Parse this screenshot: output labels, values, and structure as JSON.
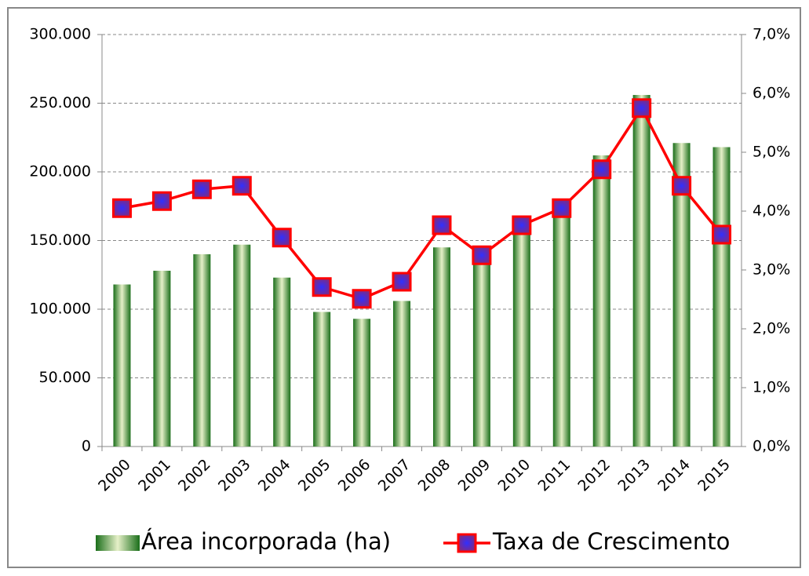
{
  "chart_data": {
    "type": "bar_line",
    "categories": [
      "2000",
      "2001",
      "2002",
      "2003",
      "2004",
      "2005",
      "2006",
      "2007",
      "2008",
      "2009",
      "2010",
      "2011",
      "2012",
      "2013",
      "2014",
      "2015"
    ],
    "series": [
      {
        "name": "Área incorporada (ha)",
        "type": "bar",
        "color": "#1e7a1e",
        "values": [
          118000,
          128000,
          140000,
          147000,
          123000,
          98000,
          93000,
          106000,
          145000,
          135000,
          158000,
          172000,
          212000,
          256000,
          221000,
          218000
        ]
      },
      {
        "name": "Taxa de Crescimento",
        "type": "line",
        "axis": "y2",
        "color": "#ff0000",
        "values": [
          4.05,
          4.17,
          4.37,
          4.43,
          3.55,
          2.71,
          2.51,
          2.8,
          3.76,
          3.25,
          3.76,
          4.05,
          4.71,
          5.75,
          4.43,
          3.6
        ]
      }
    ],
    "ylim": [
      0,
      300000
    ],
    "yticks": [
      0,
      {
        "value": 50000,
        "label": "50.000"
      },
      {
        "value": 100000,
        "label": "100.000"
      },
      {
        "value": 150000,
        "label": "150.000"
      },
      {
        "value": 200000,
        "label": "200.000"
      },
      {
        "value": 250000,
        "label": "250.000"
      },
      {
        "value": 300000,
        "label": "300.000"
      }
    ],
    "y2lim": [
      0,
      7
    ],
    "y2ticks": [
      {
        "value": 0,
        "label": "0,0%"
      },
      {
        "value": 1,
        "label": "1,0%"
      },
      {
        "value": 2,
        "label": "2,0%"
      },
      {
        "value": 3,
        "label": "3,0%"
      },
      {
        "value": 4,
        "label": "4,0%"
      },
      {
        "value": 5,
        "label": "5,0%"
      },
      {
        "value": 6,
        "label": "6,0%"
      },
      {
        "value": 7,
        "label": "7,0%"
      }
    ],
    "grid": true,
    "legend": "bottom"
  }
}
